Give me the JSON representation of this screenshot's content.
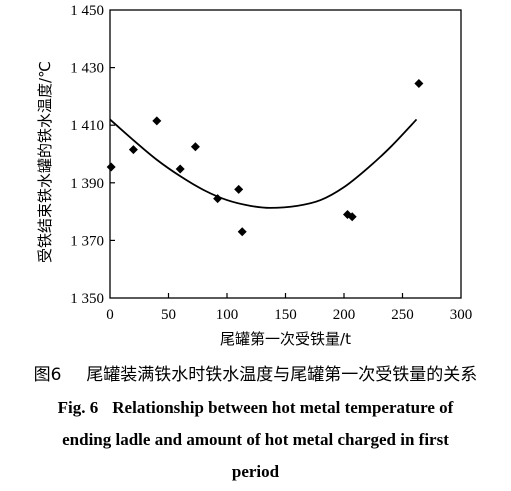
{
  "chart_data": {
    "type": "scatter",
    "xlabel": "尾罐第一次受铁量/t",
    "ylabel": "受铁结束铁水罐的铁水温度/℃",
    "xlim": [
      0,
      300
    ],
    "ylim": [
      1350,
      1450
    ],
    "x_ticks": [
      0,
      50,
      100,
      150,
      200,
      250,
      300
    ],
    "y_ticks": [
      1350,
      1370,
      1390,
      1410,
      1430,
      1450
    ],
    "x_tick_labels": [
      "0",
      "50",
      "100",
      "150",
      "200",
      "250",
      "300"
    ],
    "y_tick_labels": [
      "1 350",
      "1 370",
      "1 390",
      "1 410",
      "1 430",
      "1 450"
    ],
    "points": [
      {
        "x": 1,
        "y": 1395.5
      },
      {
        "x": 20,
        "y": 1401.5
      },
      {
        "x": 40,
        "y": 1411.5
      },
      {
        "x": 60,
        "y": 1394.8
      },
      {
        "x": 73,
        "y": 1402.5
      },
      {
        "x": 92,
        "y": 1384.5
      },
      {
        "x": 110,
        "y": 1387.7
      },
      {
        "x": 113,
        "y": 1373
      },
      {
        "x": 203,
        "y": 1379
      },
      {
        "x": 207,
        "y": 1378.2
      },
      {
        "x": 264,
        "y": 1424.5
      }
    ],
    "fit_curve": {
      "type": "quadratic",
      "points": [
        {
          "x": 0,
          "y": 1412
        },
        {
          "x": 20,
          "y": 1404.8
        },
        {
          "x": 40,
          "y": 1398.0
        },
        {
          "x": 60,
          "y": 1392.3
        },
        {
          "x": 80,
          "y": 1387.5
        },
        {
          "x": 100,
          "y": 1384.0
        },
        {
          "x": 120,
          "y": 1382.0
        },
        {
          "x": 137,
          "y": 1381.3
        },
        {
          "x": 160,
          "y": 1382.0
        },
        {
          "x": 180,
          "y": 1384.0
        },
        {
          "x": 200,
          "y": 1388.5
        },
        {
          "x": 220,
          "y": 1395.0
        },
        {
          "x": 240,
          "y": 1402.5
        },
        {
          "x": 262,
          "y": 1412.0
        }
      ]
    },
    "grid": false
  },
  "caption": {
    "cn_label": "图6",
    "cn_text": "尾罐装满铁水时铁水温度与尾罐第一次受铁量的关系",
    "en_label": "Fig. 6",
    "en_text_line1": "Relationship between hot metal temperature of",
    "en_text_line2": "ending ladle and amount of hot metal charged in first",
    "en_text_line3": "period"
  }
}
